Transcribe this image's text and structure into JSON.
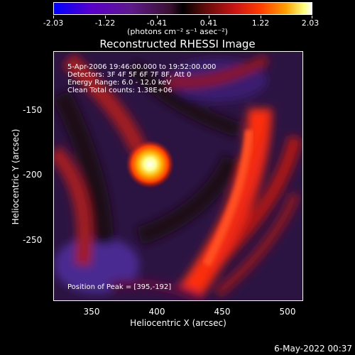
{
  "colorbar": {
    "ticks": [
      "-2.03",
      "-1.22",
      "-0.41",
      "0.41",
      "1.22",
      "2.03"
    ],
    "unit": "(photons cm⁻² s⁻¹ asec⁻²)"
  },
  "title": "Reconstructed RHESSI Image",
  "info": {
    "line1": "5-Apr-2006 19:46:00.000 to 19:52:00.000",
    "line2": "Detectors: 3F 4F 5F 6F 7F 8F, Att 0",
    "line3": "Energy Range: 6.0 - 12.0 keV",
    "line4": "Clean     Total counts: 1.38E+06",
    "peak": "Position of Peak = [395,-192]"
  },
  "axes": {
    "xlabel": "Heliocentric X (arcsec)",
    "ylabel": "Heliocentric Y (arcsec)",
    "xticks": [
      "350",
      "400",
      "450",
      "500"
    ],
    "yticks": [
      "-150",
      "-200",
      "-250"
    ]
  },
  "footer": {
    "date": "6-May-2022 00:37"
  }
}
